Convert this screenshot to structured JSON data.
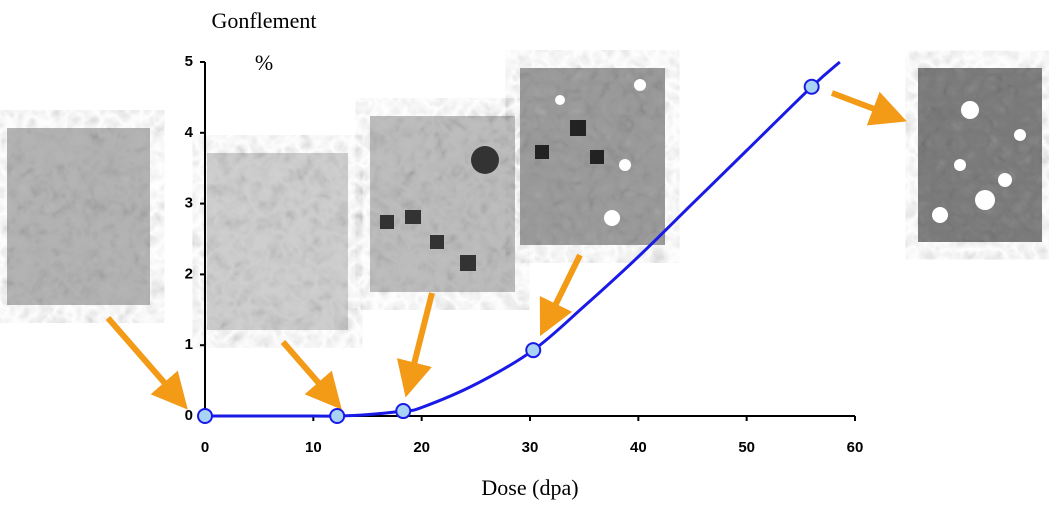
{
  "chart_data": {
    "type": "line",
    "ylabel": "Gonflement",
    "yunit": "%",
    "xlabel": "Dose (dpa)",
    "x": [
      0,
      5,
      10,
      12.2,
      15,
      18.3,
      20,
      25,
      30.3,
      35,
      40,
      45,
      50,
      56,
      58.6
    ],
    "values": [
      0,
      0,
      0,
      0,
      0.02,
      0.07,
      0.12,
      0.45,
      0.93,
      1.55,
      2.25,
      3.0,
      3.75,
      4.65,
      5.0
    ],
    "marker_x": [
      0,
      12.2,
      18.3,
      30.3,
      56
    ],
    "marker_values": [
      0,
      0,
      0.07,
      0.93,
      4.65
    ],
    "color": "#1a1ae6",
    "marker_color": "#a9d3f5",
    "xlim": [
      0,
      60
    ],
    "xticks": [
      0,
      10,
      20,
      30,
      40,
      50,
      60
    ],
    "ylim": [
      0,
      5
    ],
    "yticks": [
      0,
      1,
      2,
      3,
      4,
      5
    ]
  }
}
